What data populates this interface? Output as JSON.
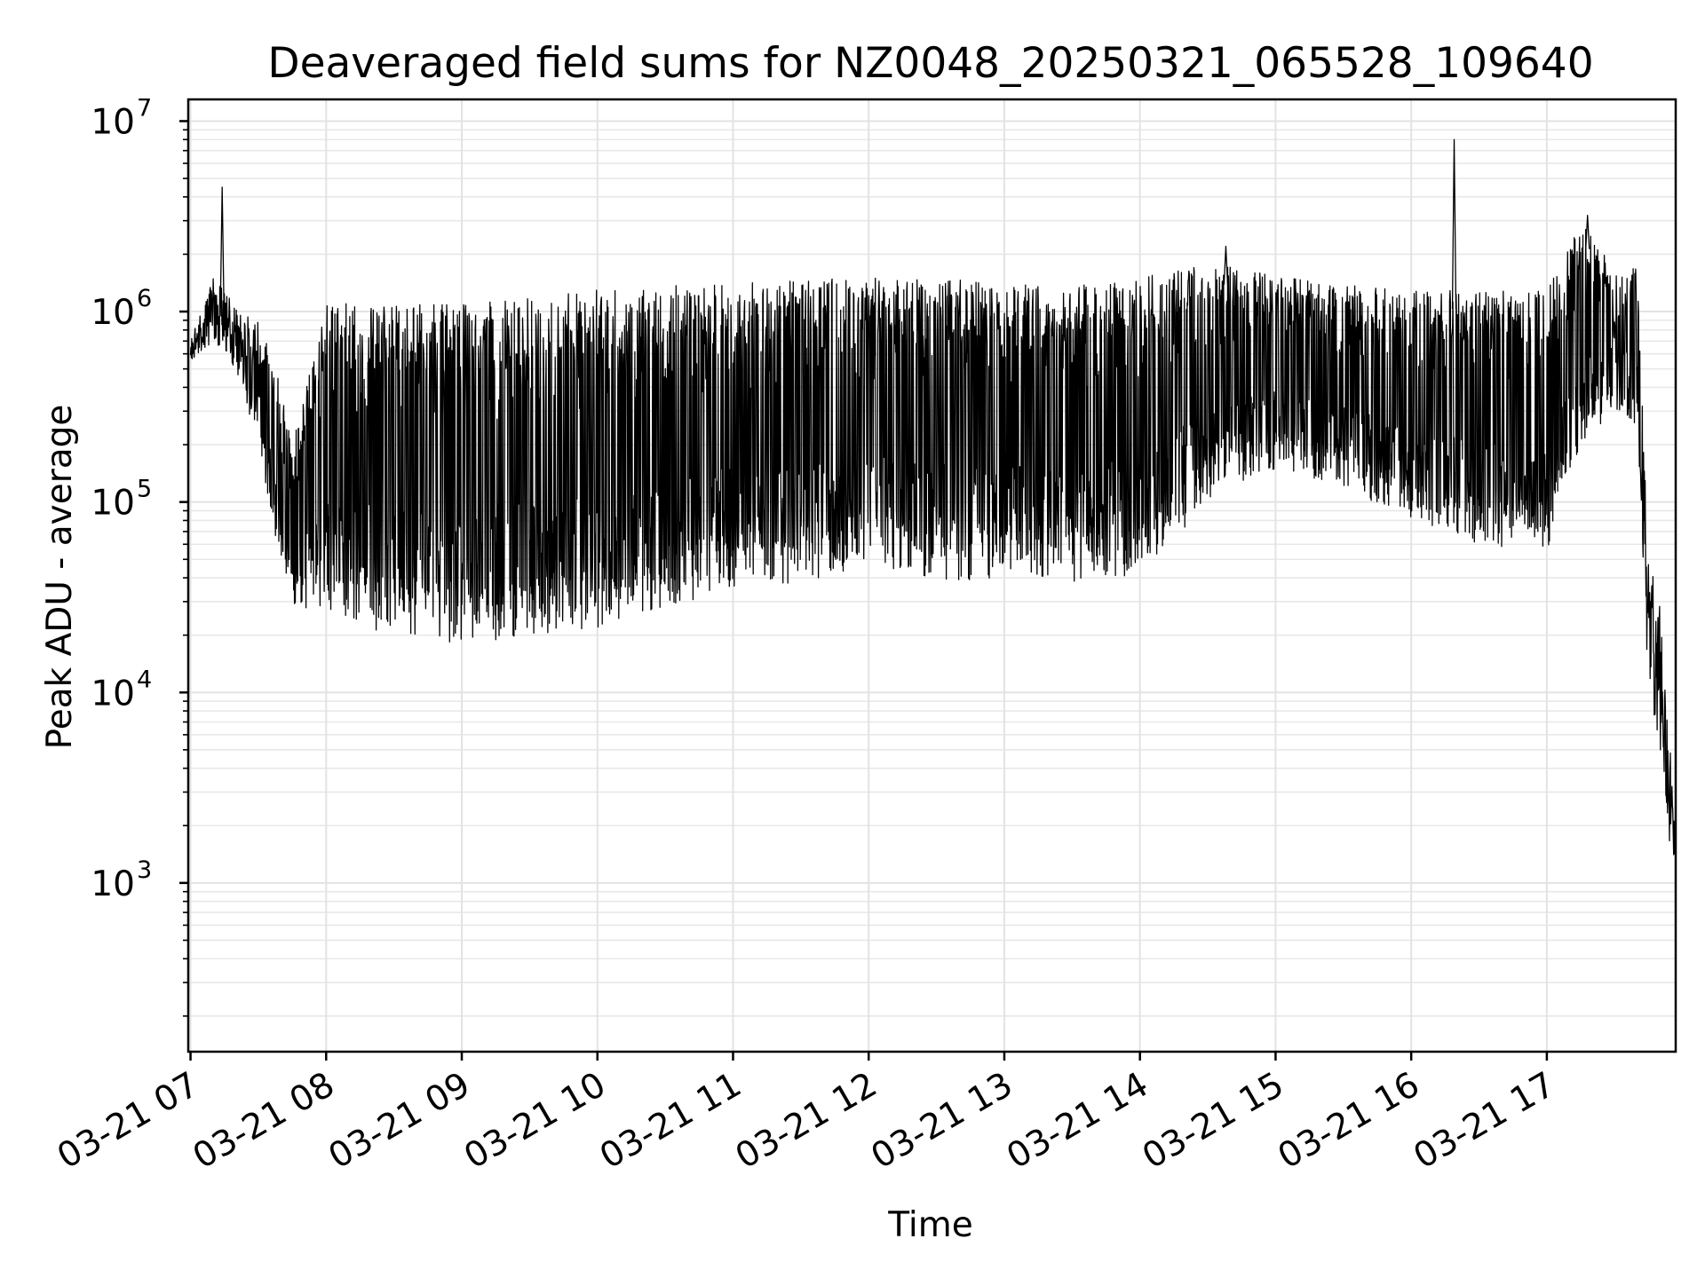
{
  "chart_data": {
    "type": "line",
    "title": "Deaveraged field sums for NZ0048_20250321_065528_109640",
    "xlabel": "Time",
    "ylabel": "Peak ADU - average",
    "yscale": "log",
    "ylim": [
      130,
      13000000
    ],
    "xlim": [
      "2025-03-21 06:59",
      "2025-03-21 17:57"
    ],
    "grid": true,
    "x_tick_labels": [
      "03-21 07",
      "03-21 08",
      "03-21 09",
      "03-21 10",
      "03-21 11",
      "03-21 12",
      "03-21 13",
      "03-21 14",
      "03-21 15",
      "03-21 16",
      "03-21 17"
    ],
    "y_tick_labels": [
      {
        "base": "10",
        "exp": "3"
      },
      {
        "base": "10",
        "exp": "4"
      },
      {
        "base": "10",
        "exp": "5"
      },
      {
        "base": "10",
        "exp": "6"
      },
      {
        "base": "10",
        "exp": "7"
      }
    ],
    "series": [
      {
        "color": "#000000",
        "low_envelope": {
          "x": [
            "2025-03-21 07:00",
            "2025-03-21 07:10",
            "2025-03-21 07:20",
            "2025-03-21 07:30",
            "2025-03-21 07:38",
            "2025-03-21 07:45",
            "2025-03-21 08:00",
            "2025-03-21 08:30",
            "2025-03-21 09:00",
            "2025-03-21 09:30",
            "2025-03-21 10:00",
            "2025-03-21 10:30",
            "2025-03-21 11:00",
            "2025-03-21 11:30",
            "2025-03-21 12:00",
            "2025-03-21 12:30",
            "2025-03-21 13:00",
            "2025-03-21 13:30",
            "2025-03-21 14:00",
            "2025-03-21 14:30",
            "2025-03-21 15:00",
            "2025-03-21 15:30",
            "2025-03-21 16:00",
            "2025-03-21 16:30",
            "2025-03-21 17:00",
            "2025-03-21 17:15",
            "2025-03-21 17:30",
            "2025-03-21 17:40",
            "2025-03-21 17:45",
            "2025-03-21 17:50",
            "2025-03-21 17:57"
          ],
          "y": [
            550000,
            700000,
            500000,
            200000,
            60000,
            28000,
            25000,
            20000,
            18000,
            19000,
            22000,
            28000,
            35000,
            38000,
            45000,
            38000,
            40000,
            38000,
            40000,
            100000,
            150000,
            120000,
            80000,
            60000,
            55000,
            200000,
            300000,
            250000,
            10000,
            5000,
            800
          ]
        },
        "high_envelope": {
          "x": [
            "2025-03-21 07:00",
            "2025-03-21 07:10",
            "2025-03-21 07:20",
            "2025-03-21 07:30",
            "2025-03-21 07:38",
            "2025-03-21 07:45",
            "2025-03-21 08:00",
            "2025-03-21 08:30",
            "2025-03-21 09:00",
            "2025-03-21 09:30",
            "2025-03-21 10:00",
            "2025-03-21 10:30",
            "2025-03-21 11:00",
            "2025-03-21 11:30",
            "2025-03-21 12:00",
            "2025-03-21 12:30",
            "2025-03-21 13:00",
            "2025-03-21 13:30",
            "2025-03-21 14:00",
            "2025-03-21 14:30",
            "2025-03-21 15:00",
            "2025-03-21 15:30",
            "2025-03-21 16:00",
            "2025-03-21 16:30",
            "2025-03-21 17:00",
            "2025-03-21 17:15",
            "2025-03-21 17:30",
            "2025-03-21 17:40",
            "2025-03-21 17:45",
            "2025-03-21 17:50",
            "2025-03-21 17:57"
          ],
          "y": [
            700000,
            1500000,
            1100000,
            900000,
            500000,
            200000,
            1100000,
            1100000,
            1100000,
            1200000,
            1300000,
            1400000,
            1400000,
            1500000,
            1500000,
            1500000,
            1400000,
            1400000,
            1500000,
            1800000,
            1600000,
            1400000,
            1300000,
            1300000,
            1300000,
            3000000,
            1700000,
            1700000,
            50000,
            30000,
            2000
          ]
        },
        "spikes": [
          {
            "x": "2025-03-21 07:14",
            "y": 4500000
          },
          {
            "x": "2025-03-21 14:38",
            "y": 2200000
          },
          {
            "x": "2025-03-21 16:19",
            "y": 8000000
          },
          {
            "x": "2025-03-21 17:18",
            "y": 3200000
          }
        ]
      }
    ]
  }
}
